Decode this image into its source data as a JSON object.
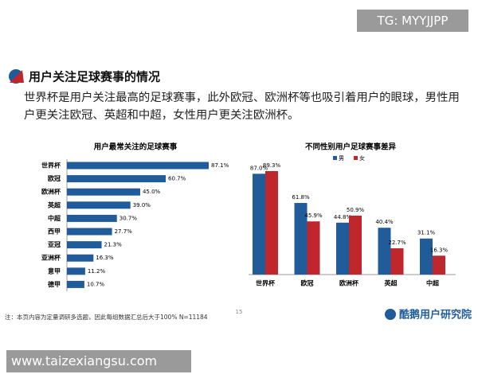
{
  "watermark_top": "TG: MYYJJPP",
  "heading": "用户关注足球赛事的情况",
  "body": "世界杯是用户关注最高的足球赛事，此外欧冠、欧洲杯等也吸引着用户的眼球，男性用户更关注欧冠、英超和中超，女性用户更关注欧洲杯。",
  "chart_data": [
    {
      "type": "bar",
      "orientation": "horizontal",
      "title": "用户最常关注的足球赛事",
      "categories": [
        "世界杯",
        "欧冠",
        "欧洲杯",
        "英超",
        "中超",
        "西甲",
        "亚冠",
        "亚洲杯",
        "意甲",
        "德甲"
      ],
      "values": [
        87.1,
        60.7,
        45.0,
        39.0,
        30.7,
        27.7,
        21.3,
        16.3,
        11.2,
        10.7
      ],
      "value_labels": [
        "87.1%",
        "60.7%",
        "45.0%",
        "39.0%",
        "30.7%",
        "27.7%",
        "21.3%",
        "16.3%",
        "11.2%",
        "10.7%"
      ],
      "color": "#1f5c99"
    },
    {
      "type": "bar",
      "orientation": "vertical",
      "title": "不同性别用户足球赛事差异",
      "categories": [
        "世界杯",
        "欧冠",
        "欧洲杯",
        "英超",
        "中超"
      ],
      "series": [
        {
          "name": "男",
          "color": "#1f5c99",
          "values": [
            87.0,
            61.8,
            44.8,
            40.4,
            31.1
          ],
          "value_labels": [
            "87.0%",
            "61.8%",
            "44.8%",
            "40.4%",
            "31.1%"
          ]
        },
        {
          "name": "女",
          "color": "#c0272d",
          "values": [
            89.3,
            45.9,
            50.9,
            22.7,
            16.3
          ],
          "value_labels": [
            "89.3%",
            "45.9%",
            "50.9%",
            "22.7%",
            "16.3%"
          ]
        }
      ],
      "legend": "top"
    }
  ],
  "note": "注：本页内容为定量调研多选题，因此每组数据汇总后大于100%  N=11184",
  "page_number": "15",
  "logo": "酷鹅用户研究院",
  "watermark_bottom": "www.taizexiangsu.com"
}
